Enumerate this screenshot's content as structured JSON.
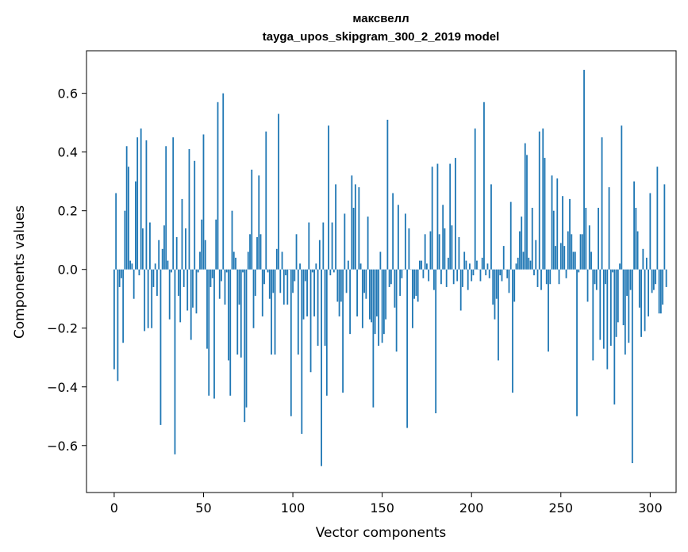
{
  "chart_data": {
    "type": "bar",
    "title": "максвелл",
    "subtitle": "tayga_upos_skipgram_300_2_2019 model",
    "xlabel": "Vector components",
    "ylabel": "Components values",
    "xlim": [
      -15.5,
      314.5
    ],
    "ylim": [
      -0.76,
      0.745
    ],
    "x_ticks": [
      {
        "value": 0,
        "label": "0"
      },
      {
        "value": 50,
        "label": "50"
      },
      {
        "value": 100,
        "label": "100"
      },
      {
        "value": 150,
        "label": "150"
      },
      {
        "value": 200,
        "label": "200"
      },
      {
        "value": 250,
        "label": "250"
      },
      {
        "value": 300,
        "label": "300"
      }
    ],
    "y_ticks": [
      {
        "value": -0.6,
        "label": "−0.6"
      },
      {
        "value": -0.4,
        "label": "−0.4"
      },
      {
        "value": -0.2,
        "label": "−0.2"
      },
      {
        "value": 0.0,
        "label": "0.0"
      },
      {
        "value": 0.2,
        "label": "0.2"
      },
      {
        "value": 0.4,
        "label": "0.4"
      },
      {
        "value": 0.6,
        "label": "0.6"
      }
    ],
    "bar_color": "#1f77b4",
    "values": [
      -0.34,
      0.26,
      -0.38,
      -0.06,
      -0.03,
      -0.25,
      0.2,
      0.42,
      0.35,
      0.03,
      0.02,
      -0.1,
      0.3,
      0.45,
      -0.02,
      0.48,
      0.14,
      -0.21,
      0.44,
      -0.2,
      0.16,
      -0.2,
      -0.06,
      0.02,
      -0.09,
      0.1,
      -0.53,
      0.07,
      0.15,
      0.42,
      0.03,
      -0.17,
      -0.01,
      0.45,
      -0.63,
      0.11,
      -0.09,
      -0.18,
      0.24,
      -0.06,
      0.14,
      -0.14,
      0.41,
      -0.24,
      -0.13,
      0.37,
      -0.15,
      -0.01,
      0.06,
      0.17,
      0.46,
      0.1,
      -0.27,
      -0.43,
      -0.06,
      -0.03,
      -0.44,
      0.17,
      0.57,
      -0.1,
      -0.04,
      0.6,
      -0.12,
      -0.01,
      -0.31,
      -0.43,
      0.2,
      0.06,
      0.04,
      -0.29,
      -0.12,
      -0.3,
      -0.01,
      -0.52,
      -0.47,
      0.06,
      0.12,
      0.34,
      -0.2,
      -0.09,
      0.11,
      0.32,
      0.12,
      -0.16,
      -0.05,
      0.47,
      -0.01,
      -0.1,
      -0.29,
      -0.08,
      -0.29,
      0.07,
      0.53,
      -0.08,
      0.06,
      -0.12,
      -0.02,
      -0.12,
      0.0,
      -0.5,
      -0.08,
      -0.04,
      0.12,
      -0.29,
      0.02,
      -0.56,
      -0.17,
      -0.04,
      -0.16,
      0.16,
      -0.35,
      -0.01,
      -0.16,
      0.02,
      -0.26,
      0.1,
      -0.67,
      0.16,
      -0.26,
      -0.43,
      0.49,
      -0.02,
      0.16,
      -0.01,
      0.29,
      -0.11,
      -0.16,
      -0.11,
      -0.42,
      0.19,
      -0.08,
      0.03,
      -0.22,
      0.32,
      0.21,
      0.29,
      -0.16,
      0.28,
      0.02,
      -0.2,
      -0.08,
      -0.1,
      0.18,
      -0.17,
      -0.18,
      -0.47,
      -0.22,
      -0.16,
      -0.26,
      0.06,
      -0.25,
      -0.22,
      -0.17,
      0.51,
      -0.06,
      -0.05,
      0.26,
      -0.13,
      -0.28,
      0.22,
      -0.09,
      -0.03,
      0.0,
      0.19,
      -0.54,
      0.14,
      0.0,
      -0.2,
      -0.1,
      -0.09,
      -0.11,
      0.03,
      0.03,
      -0.03,
      0.12,
      0.02,
      -0.04,
      0.13,
      0.35,
      -0.07,
      -0.49,
      0.36,
      0.12,
      -0.05,
      0.22,
      0.14,
      -0.06,
      0.04,
      0.36,
      0.15,
      -0.05,
      0.38,
      -0.04,
      0.11,
      -0.14,
      -0.06,
      0.06,
      0.03,
      -0.07,
      0.02,
      -0.04,
      -0.02,
      0.48,
      0.03,
      0.0,
      -0.04,
      0.04,
      0.57,
      -0.02,
      0.02,
      -0.03,
      0.29,
      -0.12,
      -0.17,
      -0.1,
      -0.31,
      -0.02,
      -0.04,
      0.08,
      0.0,
      -0.03,
      -0.08,
      0.23,
      -0.42,
      -0.11,
      0.02,
      0.04,
      0.13,
      0.18,
      0.06,
      0.43,
      0.39,
      0.04,
      0.03,
      0.21,
      -0.02,
      0.1,
      -0.06,
      0.47,
      -0.07,
      0.48,
      0.38,
      -0.05,
      -0.28,
      -0.05,
      0.32,
      0.2,
      0.08,
      0.31,
      -0.05,
      0.09,
      0.25,
      0.08,
      -0.03,
      0.13,
      0.24,
      0.12,
      0.06,
      0.06,
      -0.5,
      -0.01,
      0.12,
      0.12,
      0.68,
      0.21,
      -0.11,
      0.15,
      0.06,
      -0.31,
      -0.05,
      -0.07,
      0.21,
      -0.24,
      0.45,
      -0.27,
      -0.05,
      -0.34,
      0.28,
      -0.26,
      -0.01,
      -0.46,
      -0.23,
      -0.18,
      0.02,
      0.49,
      -0.19,
      -0.29,
      -0.09,
      -0.25,
      -0.07,
      -0.66,
      0.3,
      0.21,
      0.13,
      -0.13,
      -0.23,
      0.07,
      -0.21,
      0.04,
      -0.16,
      0.26,
      -0.08,
      -0.07,
      -0.05,
      0.35,
      -0.15,
      -0.15,
      -0.12,
      0.29,
      -0.06
    ]
  }
}
